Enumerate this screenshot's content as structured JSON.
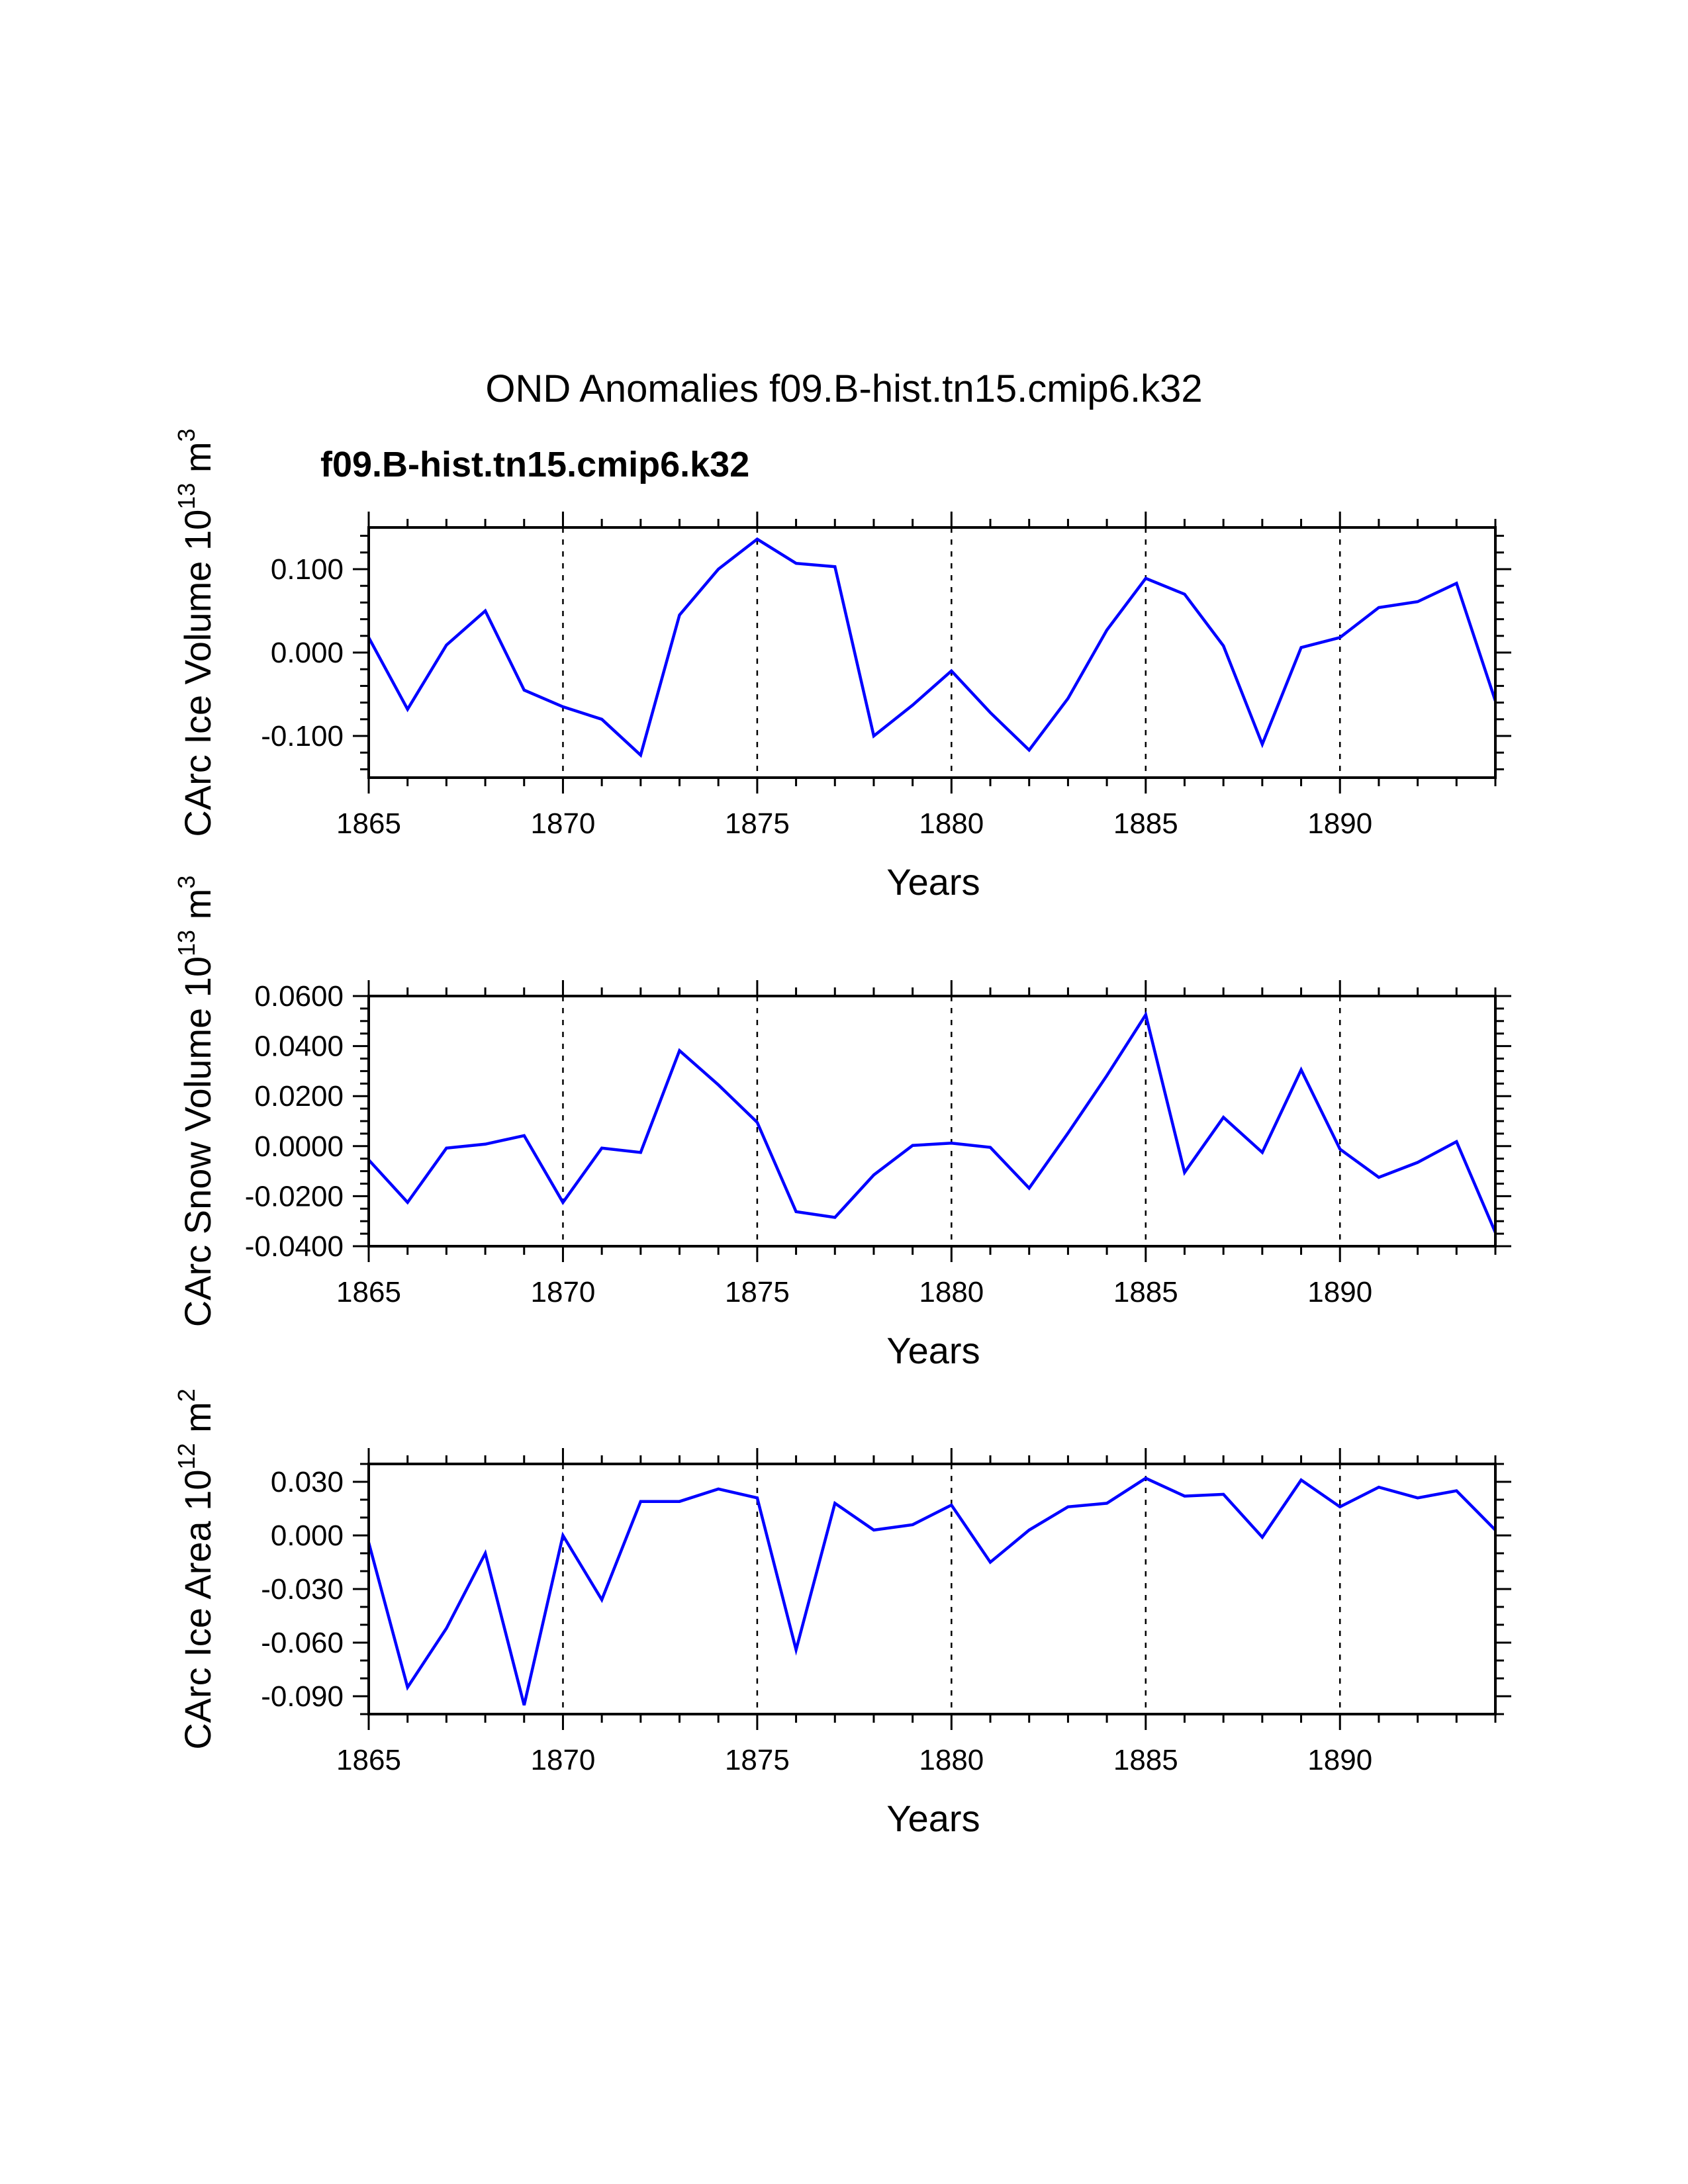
{
  "chart_data": {
    "type": "line",
    "title": "OND Anomalies f09.B-hist.tn15.cmip6.k32",
    "series_label": "f09.B-hist.tn15.cmip6.k32",
    "series_color": "#0000ff",
    "years": [
      1865,
      1866,
      1867,
      1868,
      1869,
      1870,
      1871,
      1872,
      1873,
      1874,
      1875,
      1876,
      1877,
      1878,
      1879,
      1880,
      1881,
      1882,
      1883,
      1884,
      1885,
      1886,
      1887,
      1888,
      1889,
      1890,
      1891,
      1892,
      1893,
      1894
    ],
    "xlim": [
      1865,
      1894
    ],
    "xticks": [
      1865,
      1870,
      1875,
      1880,
      1885,
      1890
    ],
    "xtick_labels": [
      "1865",
      "1870",
      "1875",
      "1880",
      "1885",
      "1890"
    ],
    "panels": [
      {
        "name": "ice-volume",
        "ylabel": {
          "text": "CArc Ice Volume 10",
          "sup": "13",
          "unit": " m",
          "unit_sup": "3"
        },
        "xlabel": "Years",
        "ylim": [
          -0.15,
          0.15
        ],
        "yticks": [
          -0.1,
          0.0,
          0.1
        ],
        "ytick_labels": [
          "-0.100",
          "0.000",
          "0.100"
        ],
        "yminor_step": 0.02,
        "values": [
          0.018,
          -0.068,
          0.009,
          0.05,
          -0.045,
          -0.065,
          -0.08,
          -0.123,
          0.045,
          0.1,
          0.136,
          0.107,
          0.103,
          -0.1,
          -0.063,
          -0.022,
          -0.072,
          -0.117,
          -0.055,
          0.027,
          0.089,
          0.07,
          0.008,
          -0.11,
          0.006,
          0.018,
          0.054,
          0.061,
          0.083,
          -0.058
        ]
      },
      {
        "name": "snow-volume",
        "ylabel": {
          "text": "CArc Snow Volume 10",
          "sup": "13",
          "unit": " m",
          "unit_sup": "3"
        },
        "xlabel": "Years",
        "ylim": [
          -0.04,
          0.06
        ],
        "yticks": [
          -0.04,
          -0.02,
          0.0,
          0.02,
          0.04,
          0.06
        ],
        "ytick_labels": [
          "-0.0400",
          "-0.0200",
          "0.0000",
          "0.0200",
          "0.0400",
          "0.0600"
        ],
        "yminor_step": 0.005,
        "values": [
          -0.0055,
          -0.0225,
          -0.0008,
          0.0008,
          0.0042,
          -0.0225,
          -0.0008,
          -0.0025,
          0.0382,
          0.0245,
          0.0095,
          -0.0262,
          -0.0285,
          -0.0115,
          0.0003,
          0.0012,
          -0.0005,
          -0.0168,
          0.0052,
          0.0282,
          0.0525,
          -0.0105,
          0.0115,
          -0.0025,
          0.0305,
          -0.0012,
          -0.0125,
          -0.0065,
          0.0018,
          -0.0345
        ]
      },
      {
        "name": "ice-area",
        "ylabel": {
          "text": "CArc Ice Area 10",
          "sup": "12",
          "unit": " m",
          "unit_sup": "2"
        },
        "xlabel": "Years",
        "ylim": [
          -0.1,
          0.04
        ],
        "yticks": [
          -0.09,
          -0.06,
          -0.03,
          0.0,
          0.03
        ],
        "ytick_labels": [
          "-0.090",
          "-0.060",
          "-0.030",
          "0.000",
          "0.030"
        ],
        "yminor_step": 0.01,
        "values": [
          -0.004,
          -0.085,
          -0.052,
          -0.01,
          -0.095,
          0.0,
          -0.036,
          0.019,
          0.019,
          0.026,
          0.021,
          -0.064,
          0.018,
          0.003,
          0.006,
          0.017,
          -0.015,
          0.003,
          0.016,
          0.018,
          0.032,
          0.022,
          0.023,
          -0.001,
          0.031,
          0.016,
          0.027,
          0.021,
          0.025,
          0.003
        ]
      }
    ]
  }
}
